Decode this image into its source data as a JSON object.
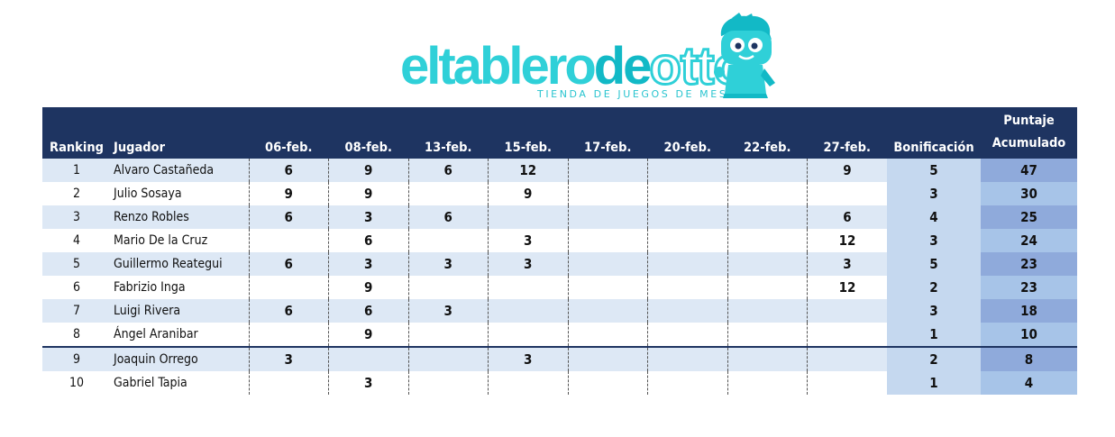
{
  "logo": {
    "part1": "eltablero",
    "part2": "de",
    "part3": "otto",
    "subtitle": "TIENDA DE JUEGOS DE MESA",
    "mascot_icon": "mascot-kid-icon",
    "color_primary": "#2fd0d8"
  },
  "table": {
    "headers": {
      "rank": "Ranking",
      "player": "Jugador",
      "dates": [
        "06-feb.",
        "08-feb.",
        "13-feb.",
        "15-feb.",
        "17-feb.",
        "20-feb.",
        "22-feb.",
        "27-feb."
      ],
      "bonus": "Bonificación",
      "total_line1": "Puntaje",
      "total_line2": "Acumulado"
    },
    "rows": [
      {
        "rank": "1",
        "name": "Alvaro Castañeda",
        "scores": [
          "6",
          "9",
          "6",
          "12",
          "",
          "",
          "",
          "9"
        ],
        "bonus": "5",
        "total": "47"
      },
      {
        "rank": "2",
        "name": "Julio Sosaya",
        "scores": [
          "9",
          "9",
          "",
          "9",
          "",
          "",
          "",
          ""
        ],
        "bonus": "3",
        "total": "30"
      },
      {
        "rank": "3",
        "name": "Renzo Robles",
        "scores": [
          "6",
          "3",
          "6",
          "",
          "",
          "",
          "",
          "6"
        ],
        "bonus": "4",
        "total": "25"
      },
      {
        "rank": "4",
        "name": "Mario De la Cruz",
        "scores": [
          "",
          "6",
          "",
          "3",
          "",
          "",
          "",
          "12"
        ],
        "bonus": "3",
        "total": "24"
      },
      {
        "rank": "5",
        "name": "Guillermo Reategui",
        "scores": [
          "6",
          "3",
          "3",
          "3",
          "",
          "",
          "",
          "3"
        ],
        "bonus": "5",
        "total": "23"
      },
      {
        "rank": "6",
        "name": "Fabrizio Inga",
        "scores": [
          "",
          "9",
          "",
          "",
          "",
          "",
          "",
          "12"
        ],
        "bonus": "2",
        "total": "23"
      },
      {
        "rank": "7",
        "name": "Luigi Rivera",
        "scores": [
          "6",
          "6",
          "3",
          "",
          "",
          "",
          "",
          ""
        ],
        "bonus": "3",
        "total": "18"
      },
      {
        "rank": "8",
        "name": "Ángel Aranibar",
        "scores": [
          "",
          "9",
          "",
          "",
          "",
          "",
          "",
          ""
        ],
        "bonus": "1",
        "total": "10"
      },
      {
        "rank": "9",
        "name": "Joaquin Orrego",
        "scores": [
          "3",
          "",
          "",
          "3",
          "",
          "",
          "",
          ""
        ],
        "bonus": "2",
        "total": "8"
      },
      {
        "rank": "10",
        "name": "Gabriel Tapia",
        "scores": [
          "",
          "3",
          "",
          "",
          "",
          "",
          "",
          ""
        ],
        "bonus": "1",
        "total": "4"
      }
    ]
  }
}
